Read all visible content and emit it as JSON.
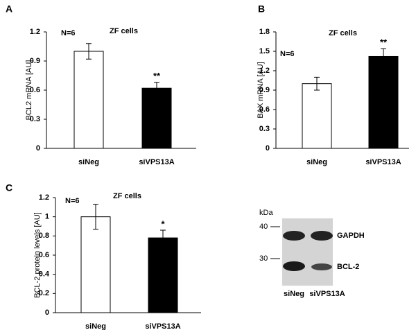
{
  "chart_data": [
    {
      "type": "bar",
      "panel": "A",
      "y_label": "BCL2 mRNA [AU]",
      "n_label": "N=6",
      "subtitle": "ZF cells",
      "categories": [
        "siNeg",
        "siVPS13A"
      ],
      "values": [
        1.0,
        0.62
      ],
      "errors": [
        0.08,
        0.06
      ],
      "colors": [
        "#ffffff",
        "#000000"
      ],
      "significance": [
        null,
        "**"
      ],
      "ylim": [
        0,
        1.2
      ],
      "yticks": [
        0,
        0.3,
        0.6,
        0.9,
        1.2
      ]
    },
    {
      "type": "bar",
      "panel": "B",
      "y_label": "BAX mRNA [AU]",
      "n_label": "N=6",
      "subtitle": "ZF cells",
      "categories": [
        "siNeg",
        "siVPS13A"
      ],
      "values": [
        1.0,
        1.42
      ],
      "errors": [
        0.1,
        0.12
      ],
      "colors": [
        "#ffffff",
        "#000000"
      ],
      "significance": [
        null,
        "**"
      ],
      "ylim": [
        0,
        1.8
      ],
      "yticks": [
        0,
        0.3,
        0.6,
        0.9,
        1.2,
        1.5,
        1.8
      ]
    },
    {
      "type": "bar",
      "panel": "C",
      "y_label": "BCL-2 protein levels [AU]",
      "n_label": "N=6",
      "subtitle": "ZF cells",
      "categories": [
        "siNeg",
        "siVPS13A"
      ],
      "values": [
        1.0,
        0.78
      ],
      "errors": [
        0.13,
        0.08
      ],
      "colors": [
        "#ffffff",
        "#000000"
      ],
      "significance": [
        null,
        "*"
      ],
      "ylim": [
        0,
        1.2
      ],
      "yticks": [
        0,
        0.2,
        0.4,
        0.6,
        0.8,
        1,
        1.2
      ]
    }
  ],
  "blot": {
    "unit": "kDa",
    "markers": [
      "40",
      "30"
    ],
    "proteins": [
      "GAPDH",
      "BCL-2"
    ],
    "lanes": [
      "siNeg",
      "siVPS13A"
    ]
  }
}
